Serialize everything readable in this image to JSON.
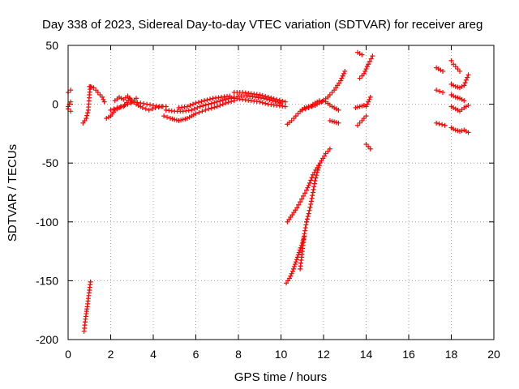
{
  "chart_data": {
    "type": "scatter",
    "title": "Day 338 of 2023, Sidereal Day-to-day VTEC variation (SDTVAR) for receiver areg",
    "xlabel": "GPS time / hours",
    "ylabel": "SDTVAR / TECUs",
    "xlim": [
      0,
      20
    ],
    "ylim": [
      -200,
      50
    ],
    "x_ticks": [
      0,
      2,
      4,
      6,
      8,
      10,
      12,
      14,
      16,
      18,
      20
    ],
    "y_ticks": [
      50,
      0,
      -50,
      -100,
      -150,
      -200
    ],
    "grid": true,
    "marker": "+",
    "marker_color": "#ff0000",
    "series": [
      {
        "name": "SDTVAR",
        "segments": [
          {
            "x": [
              0.0,
              0.12
            ],
            "y": [
              10,
              12
            ]
          },
          {
            "x": [
              0.0,
              0.12
            ],
            "y": [
              -2,
              2
            ]
          },
          {
            "x": [
              0.0,
              0.12
            ],
            "y": [
              -4,
              -6
            ]
          },
          {
            "x": [
              0.7,
              0.85,
              0.95,
              1.0,
              1.05
            ],
            "y": [
              -16,
              -12,
              -5,
              8,
              15
            ]
          },
          {
            "x": [
              1.0,
              1.2,
              1.4,
              1.6,
              1.7
            ],
            "y": [
              15,
              14,
              10,
              6,
              2
            ]
          },
          {
            "x": [
              1.8,
              2.0,
              2.2,
              2.5,
              2.8,
              3.1,
              3.4,
              3.7,
              4.0,
              4.3,
              4.6
            ],
            "y": [
              -12,
              -10,
              -5,
              -2,
              0,
              2,
              1,
              0,
              -1,
              -2,
              -2
            ]
          },
          {
            "x": [
              2.0,
              2.3,
              2.6,
              2.9,
              3.2,
              3.5,
              3.8,
              4.1,
              4.4
            ],
            "y": [
              -5,
              -3,
              -2,
              5,
              0,
              -3,
              -5,
              -3,
              -2
            ]
          },
          {
            "x": [
              2.2,
              2.4,
              2.6,
              2.8,
              3.0,
              3.2
            ],
            "y": [
              3,
              6,
              4,
              7,
              2,
              5
            ]
          },
          {
            "x": [
              4.5,
              4.8,
              5.0,
              5.2,
              5.4,
              5.6,
              5.8,
              6.0,
              6.3,
              6.6,
              7.0,
              7.4,
              7.8
            ],
            "y": [
              -10,
              -12,
              -13,
              -14,
              -13,
              -12,
              -10,
              -8,
              -6,
              -4,
              -2,
              1,
              3
            ]
          },
          {
            "x": [
              4.6,
              5.0,
              5.4,
              5.8,
              6.2,
              6.6,
              7.0,
              7.4,
              7.8
            ],
            "y": [
              -5,
              -6,
              -6,
              -5,
              -2,
              0,
              2,
              4,
              6
            ]
          },
          {
            "x": [
              5.2,
              5.6,
              6.0,
              6.4,
              6.8,
              7.2,
              7.6
            ],
            "y": [
              -3,
              -2,
              1,
              3,
              5,
              6,
              7
            ]
          },
          {
            "x": [
              7.8,
              8.2,
              8.6,
              9.0,
              9.4,
              9.8,
              10.2
            ],
            "y": [
              10,
              10,
              9,
              8,
              6,
              4,
              2
            ]
          },
          {
            "x": [
              7.8,
              8.2,
              8.6,
              9.0,
              9.4,
              9.8,
              10.2
            ],
            "y": [
              5,
              4,
              3,
              2,
              0,
              -1,
              -2
            ]
          },
          {
            "x": [
              8.0,
              8.4,
              8.8,
              9.2,
              9.6,
              10.0
            ],
            "y": [
              7,
              7,
              6,
              5,
              3,
              1
            ]
          },
          {
            "x": [
              10.3,
              10.5,
              10.7,
              10.9,
              11.1,
              11.3,
              11.5
            ],
            "y": [
              -17,
              -14,
              -10,
              -6,
              -3,
              -2,
              -1
            ]
          },
          {
            "x": [
              11.0,
              11.3,
              11.6,
              11.9,
              12.2,
              12.5,
              12.8,
              13.0
            ],
            "y": [
              -5,
              -3,
              -1,
              2,
              6,
              12,
              20,
              28
            ]
          },
          {
            "x": [
              11.5,
              11.8,
              12.1,
              12.4,
              12.7
            ],
            "y": [
              0,
              3,
              2,
              -2,
              -5
            ]
          },
          {
            "x": [
              12.3,
              12.5,
              12.7
            ],
            "y": [
              -14,
              -15,
              -16
            ]
          },
          {
            "x": [
              10.3,
              10.45,
              10.6,
              10.75,
              10.9,
              11.05,
              11.2,
              11.35,
              11.5,
              11.7,
              11.9,
              12.1,
              12.3
            ],
            "y": [
              -100,
              -96,
              -92,
              -88,
              -83,
              -78,
              -73,
              -67,
              -60,
              -54,
              -48,
              -42,
              -38
            ]
          },
          {
            "x": [
              10.25,
              10.4,
              10.55,
              10.7,
              10.85,
              11.0,
              11.1
            ],
            "y": [
              -152,
              -148,
              -142,
              -134,
              -126,
              -118,
              -112
            ]
          },
          {
            "x": [
              10.9,
              11.0,
              11.1,
              11.2
            ],
            "y": [
              -140,
              -125,
              -110,
              -100
            ]
          },
          {
            "x": [
              11.2,
              11.3,
              11.4,
              11.5,
              11.6,
              11.7,
              11.8
            ],
            "y": [
              -100,
              -93,
              -85,
              -75,
              -65,
              -58,
              -52
            ]
          },
          {
            "x": [
              0.75,
              0.8,
              0.85,
              0.9,
              0.95,
              1.0,
              1.05
            ],
            "y": [
              -193,
              -185,
              -178,
              -172,
              -165,
              -158,
              -151
            ]
          },
          {
            "x": [
              13.6,
              13.7,
              13.8
            ],
            "y": [
              44,
              43,
              42
            ]
          },
          {
            "x": [
              13.7,
              13.9,
              14.1,
              14.3
            ],
            "y": [
              22,
              26,
              34,
              41
            ]
          },
          {
            "x": [
              13.5,
              13.7,
              13.9
            ],
            "y": [
              -3,
              -2,
              -1
            ]
          },
          {
            "x": [
              14.0,
              14.1,
              14.2
            ],
            "y": [
              -2,
              2,
              6
            ]
          },
          {
            "x": [
              13.6,
              13.8,
              14.0
            ],
            "y": [
              -18,
              -14,
              -10
            ]
          },
          {
            "x": [
              14.0,
              14.1,
              14.2
            ],
            "y": [
              -34,
              -36,
              -38
            ]
          },
          {
            "x": [
              17.3,
              17.6
            ],
            "y": [
              31,
              28
            ]
          },
          {
            "x": [
              17.3,
              17.6
            ],
            "y": [
              12,
              10
            ]
          },
          {
            "x": [
              17.3,
              17.7
            ],
            "y": [
              -16,
              -18
            ]
          },
          {
            "x": [
              18.0,
              18.1,
              18.2,
              18.3,
              18.4
            ],
            "y": [
              37,
              34,
              32,
              30,
              28
            ]
          },
          {
            "x": [
              18.0,
              18.2,
              18.4,
              18.6,
              18.8
            ],
            "y": [
              17,
              15,
              14,
              16,
              25
            ]
          },
          {
            "x": [
              18.0,
              18.2,
              18.4,
              18.6
            ],
            "y": [
              8,
              6,
              5,
              3
            ]
          },
          {
            "x": [
              18.0,
              18.2,
              18.4,
              18.6,
              18.8
            ],
            "y": [
              -2,
              -4,
              -6,
              -3,
              -1
            ]
          },
          {
            "x": [
              18.0,
              18.2,
              18.4,
              18.6,
              18.8
            ],
            "y": [
              -20,
              -22,
              -23,
              -22,
              -24
            ]
          }
        ]
      }
    ]
  }
}
